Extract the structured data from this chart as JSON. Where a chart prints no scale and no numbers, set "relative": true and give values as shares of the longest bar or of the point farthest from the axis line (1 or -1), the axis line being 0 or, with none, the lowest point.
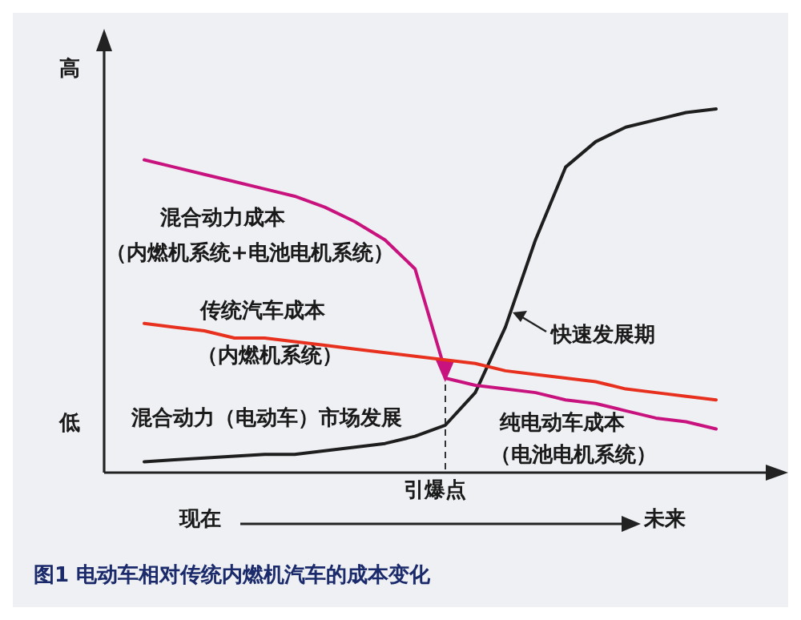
{
  "chart_data": {
    "type": "line",
    "title": "图1 电动车相对传统内燃机汽车的成本变化",
    "relative": true,
    "categories": [
      null,
      null,
      null,
      null,
      null,
      null,
      null,
      null,
      null,
      null,
      null,
      null,
      null,
      null,
      null,
      null,
      null,
      null,
      null,
      null
    ],
    "series": [
      {
        "color": "#1e1e1e",
        "values": [
          0.03,
          0.035,
          0.04,
          0.045,
          0.05,
          0.05,
          0.06,
          0.07,
          0.08,
          0.1,
          0.13,
          0.22,
          0.4,
          0.64,
          0.84,
          0.91,
          0.95,
          0.97,
          0.99,
          1
        ]
      },
      {
        "color": "#c8137f",
        "values": [
          0.86,
          0.84,
          0.82,
          0.8,
          0.78,
          0.76,
          0.73,
          0.69,
          0.64,
          0.56,
          0.28,
          null,
          null,
          null,
          null,
          null,
          null,
          null,
          null,
          null
        ]
      },
      {
        "color": "#e8301e",
        "values": [
          0.41,
          0.4,
          0.39,
          0.37,
          0.37,
          0.36,
          0.35,
          0.34,
          0.33,
          0.32,
          0.31,
          0.3,
          0.28,
          0.27,
          0.26,
          0.25,
          0.23,
          0.22,
          0.21,
          0.2
        ]
      },
      {
        "color": "#c8137f",
        "values": [
          null,
          null,
          null,
          null,
          null,
          null,
          null,
          null,
          null,
          null,
          0.26,
          0.24,
          0.23,
          0.22,
          0.2,
          0.19,
          0.17,
          0.15,
          0.14,
          0.12
        ]
      }
    ],
    "annotations": [
      "混合动力成本",
      "（内燃机系统+电池电机系统）",
      "传统汽车成本",
      "（内燃机系统）",
      "快速发展期",
      "混合动力（电动车）市场发展",
      "纯电动车成本",
      "（电池电机系统）",
      "高",
      "低",
      "现在",
      "未来",
      "引爆点"
    ],
    "grid": false,
    "marker": "none",
    "line_style": "solid"
  }
}
